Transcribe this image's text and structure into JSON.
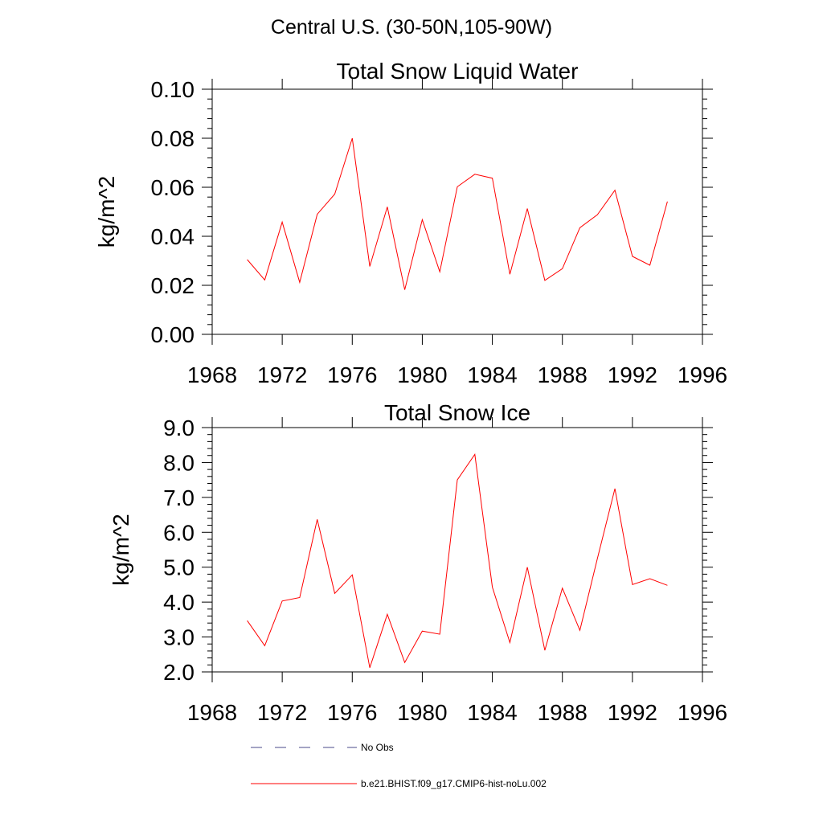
{
  "page_title": "Central U.S. (30-50N,105-90W)",
  "legend": {
    "items": [
      {
        "label": "No Obs",
        "style": "dashed",
        "color": "#4a4a8a"
      },
      {
        "label": "b.e21.BHIST.f09_g17.CMIP6-hist-noLu.002",
        "style": "solid",
        "color": "#ff0000"
      }
    ]
  },
  "chart_data": [
    {
      "type": "line",
      "title": "Total Snow Liquid Water",
      "xlabel": "",
      "ylabel": "kg/m^2",
      "xlim": [
        1968,
        1996
      ],
      "ylim": [
        0.0,
        0.1
      ],
      "xticks": [
        1968,
        1972,
        1976,
        1980,
        1984,
        1988,
        1992,
        1996
      ],
      "xtick_labels": [
        "1968",
        "1972",
        "1976",
        "1980",
        "1984",
        "1988",
        "1992",
        "1996"
      ],
      "yticks": [
        0.0,
        0.02,
        0.04,
        0.06,
        0.08,
        0.1
      ],
      "ytick_labels": [
        "0.00",
        "0.02",
        "0.04",
        "0.06",
        "0.08",
        "0.10"
      ],
      "x": [
        1970,
        1971,
        1972,
        1973,
        1974,
        1975,
        1976,
        1977,
        1978,
        1979,
        1980,
        1981,
        1982,
        1983,
        1984,
        1985,
        1986,
        1987,
        1988,
        1989,
        1990,
        1991,
        1992,
        1993,
        1994
      ],
      "series": [
        {
          "name": "b.e21.BHIST.f09_g17.CMIP6-hist-noLu.002",
          "color": "#ff0000",
          "values": [
            0.0305,
            0.0222,
            0.0458,
            0.0212,
            0.049,
            0.0572,
            0.08,
            0.0277,
            0.052,
            0.0182,
            0.0468,
            0.0255,
            0.0602,
            0.0653,
            0.0637,
            0.0245,
            0.0513,
            0.022,
            0.0268,
            0.0435,
            0.0488,
            0.0588,
            0.0318,
            0.0282,
            0.0542
          ]
        }
      ]
    },
    {
      "type": "line",
      "title": "Total Snow Ice",
      "xlabel": "",
      "ylabel": "kg/m^2",
      "xlim": [
        1968,
        1996
      ],
      "ylim": [
        2.0,
        9.0
      ],
      "xticks": [
        1968,
        1972,
        1976,
        1980,
        1984,
        1988,
        1992,
        1996
      ],
      "xtick_labels": [
        "1968",
        "1972",
        "1976",
        "1980",
        "1984",
        "1988",
        "1992",
        "1996"
      ],
      "yticks": [
        2.0,
        3.0,
        4.0,
        5.0,
        6.0,
        7.0,
        8.0,
        9.0
      ],
      "ytick_labels": [
        "2.0",
        "3.0",
        "4.0",
        "5.0",
        "6.0",
        "7.0",
        "8.0",
        "9.0"
      ],
      "x": [
        1970,
        1971,
        1972,
        1973,
        1974,
        1975,
        1976,
        1977,
        1978,
        1979,
        1980,
        1981,
        1982,
        1983,
        1984,
        1985,
        1986,
        1987,
        1988,
        1989,
        1990,
        1991,
        1992,
        1993,
        1994
      ],
      "series": [
        {
          "name": "b.e21.BHIST.f09_g17.CMIP6-hist-noLu.002",
          "color": "#ff0000",
          "values": [
            3.47,
            2.75,
            4.03,
            4.13,
            6.37,
            4.25,
            4.78,
            2.12,
            3.65,
            2.27,
            3.17,
            3.08,
            7.5,
            8.23,
            4.43,
            2.84,
            5.0,
            2.62,
            4.4,
            3.19,
            5.25,
            7.25,
            4.5,
            4.67,
            4.48
          ]
        }
      ]
    }
  ]
}
